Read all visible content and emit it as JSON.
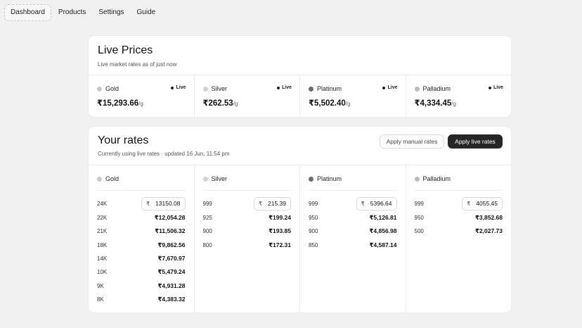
{
  "nav": {
    "items": [
      "Dashboard",
      "Products",
      "Settings",
      "Guide"
    ]
  },
  "live_prices": {
    "title": "Live Prices",
    "subtitle": "Live market rates as of just now",
    "live_label": "Live",
    "unit": "/g",
    "metals": [
      {
        "name": "Gold",
        "price": "₹15,293.66",
        "dot_color": "#c9c9c9"
      },
      {
        "name": "Silver",
        "price": "₹262.53",
        "dot_color": "#d2d2d2"
      },
      {
        "name": "Platinum",
        "price": "₹5,502.40",
        "dot_color": "#6b6b6b"
      },
      {
        "name": "Palladium",
        "price": "₹4,334.45",
        "dot_color": "#bdbdbd"
      }
    ]
  },
  "your_rates": {
    "title": "Your rates",
    "subtitle": "Currently using live rates · updated 16 Jun, 11:54 pm",
    "buttons": {
      "manual": "Apply manual rates",
      "live": "Apply live rates"
    },
    "currency_symbol": "₹",
    "metals": [
      {
        "name": "Gold",
        "input": {
          "purity": "24K",
          "value": "13150.08"
        },
        "rows": [
          {
            "purity": "22K",
            "value": "₹12,054.28"
          },
          {
            "purity": "21K",
            "value": "₹11,506.32"
          },
          {
            "purity": "18K",
            "value": "₹9,862.56"
          },
          {
            "purity": "14K",
            "value": "₹7,670.97"
          },
          {
            "purity": "10K",
            "value": "₹5,479.24"
          },
          {
            "purity": "9K",
            "value": "₹4,931.28"
          },
          {
            "purity": "8K",
            "value": "₹4,383.32"
          }
        ]
      },
      {
        "name": "Silver",
        "input": {
          "purity": "999",
          "value": "215.39"
        },
        "rows": [
          {
            "purity": "925",
            "value": "₹199.24"
          },
          {
            "purity": "900",
            "value": "₹193.85"
          },
          {
            "purity": "800",
            "value": "₹172.31"
          }
        ]
      },
      {
        "name": "Platinum",
        "input": {
          "purity": "999",
          "value": "5396.64"
        },
        "rows": [
          {
            "purity": "950",
            "value": "₹5,126.81"
          },
          {
            "purity": "900",
            "value": "₹4,856.98"
          },
          {
            "purity": "850",
            "value": "₹4,587.14"
          }
        ]
      },
      {
        "name": "Palladium",
        "input": {
          "purity": "999",
          "value": "4055.45"
        },
        "rows": [
          {
            "purity": "950",
            "value": "₹3,852.68"
          },
          {
            "purity": "500",
            "value": "₹2,027.73"
          }
        ]
      }
    ]
  }
}
